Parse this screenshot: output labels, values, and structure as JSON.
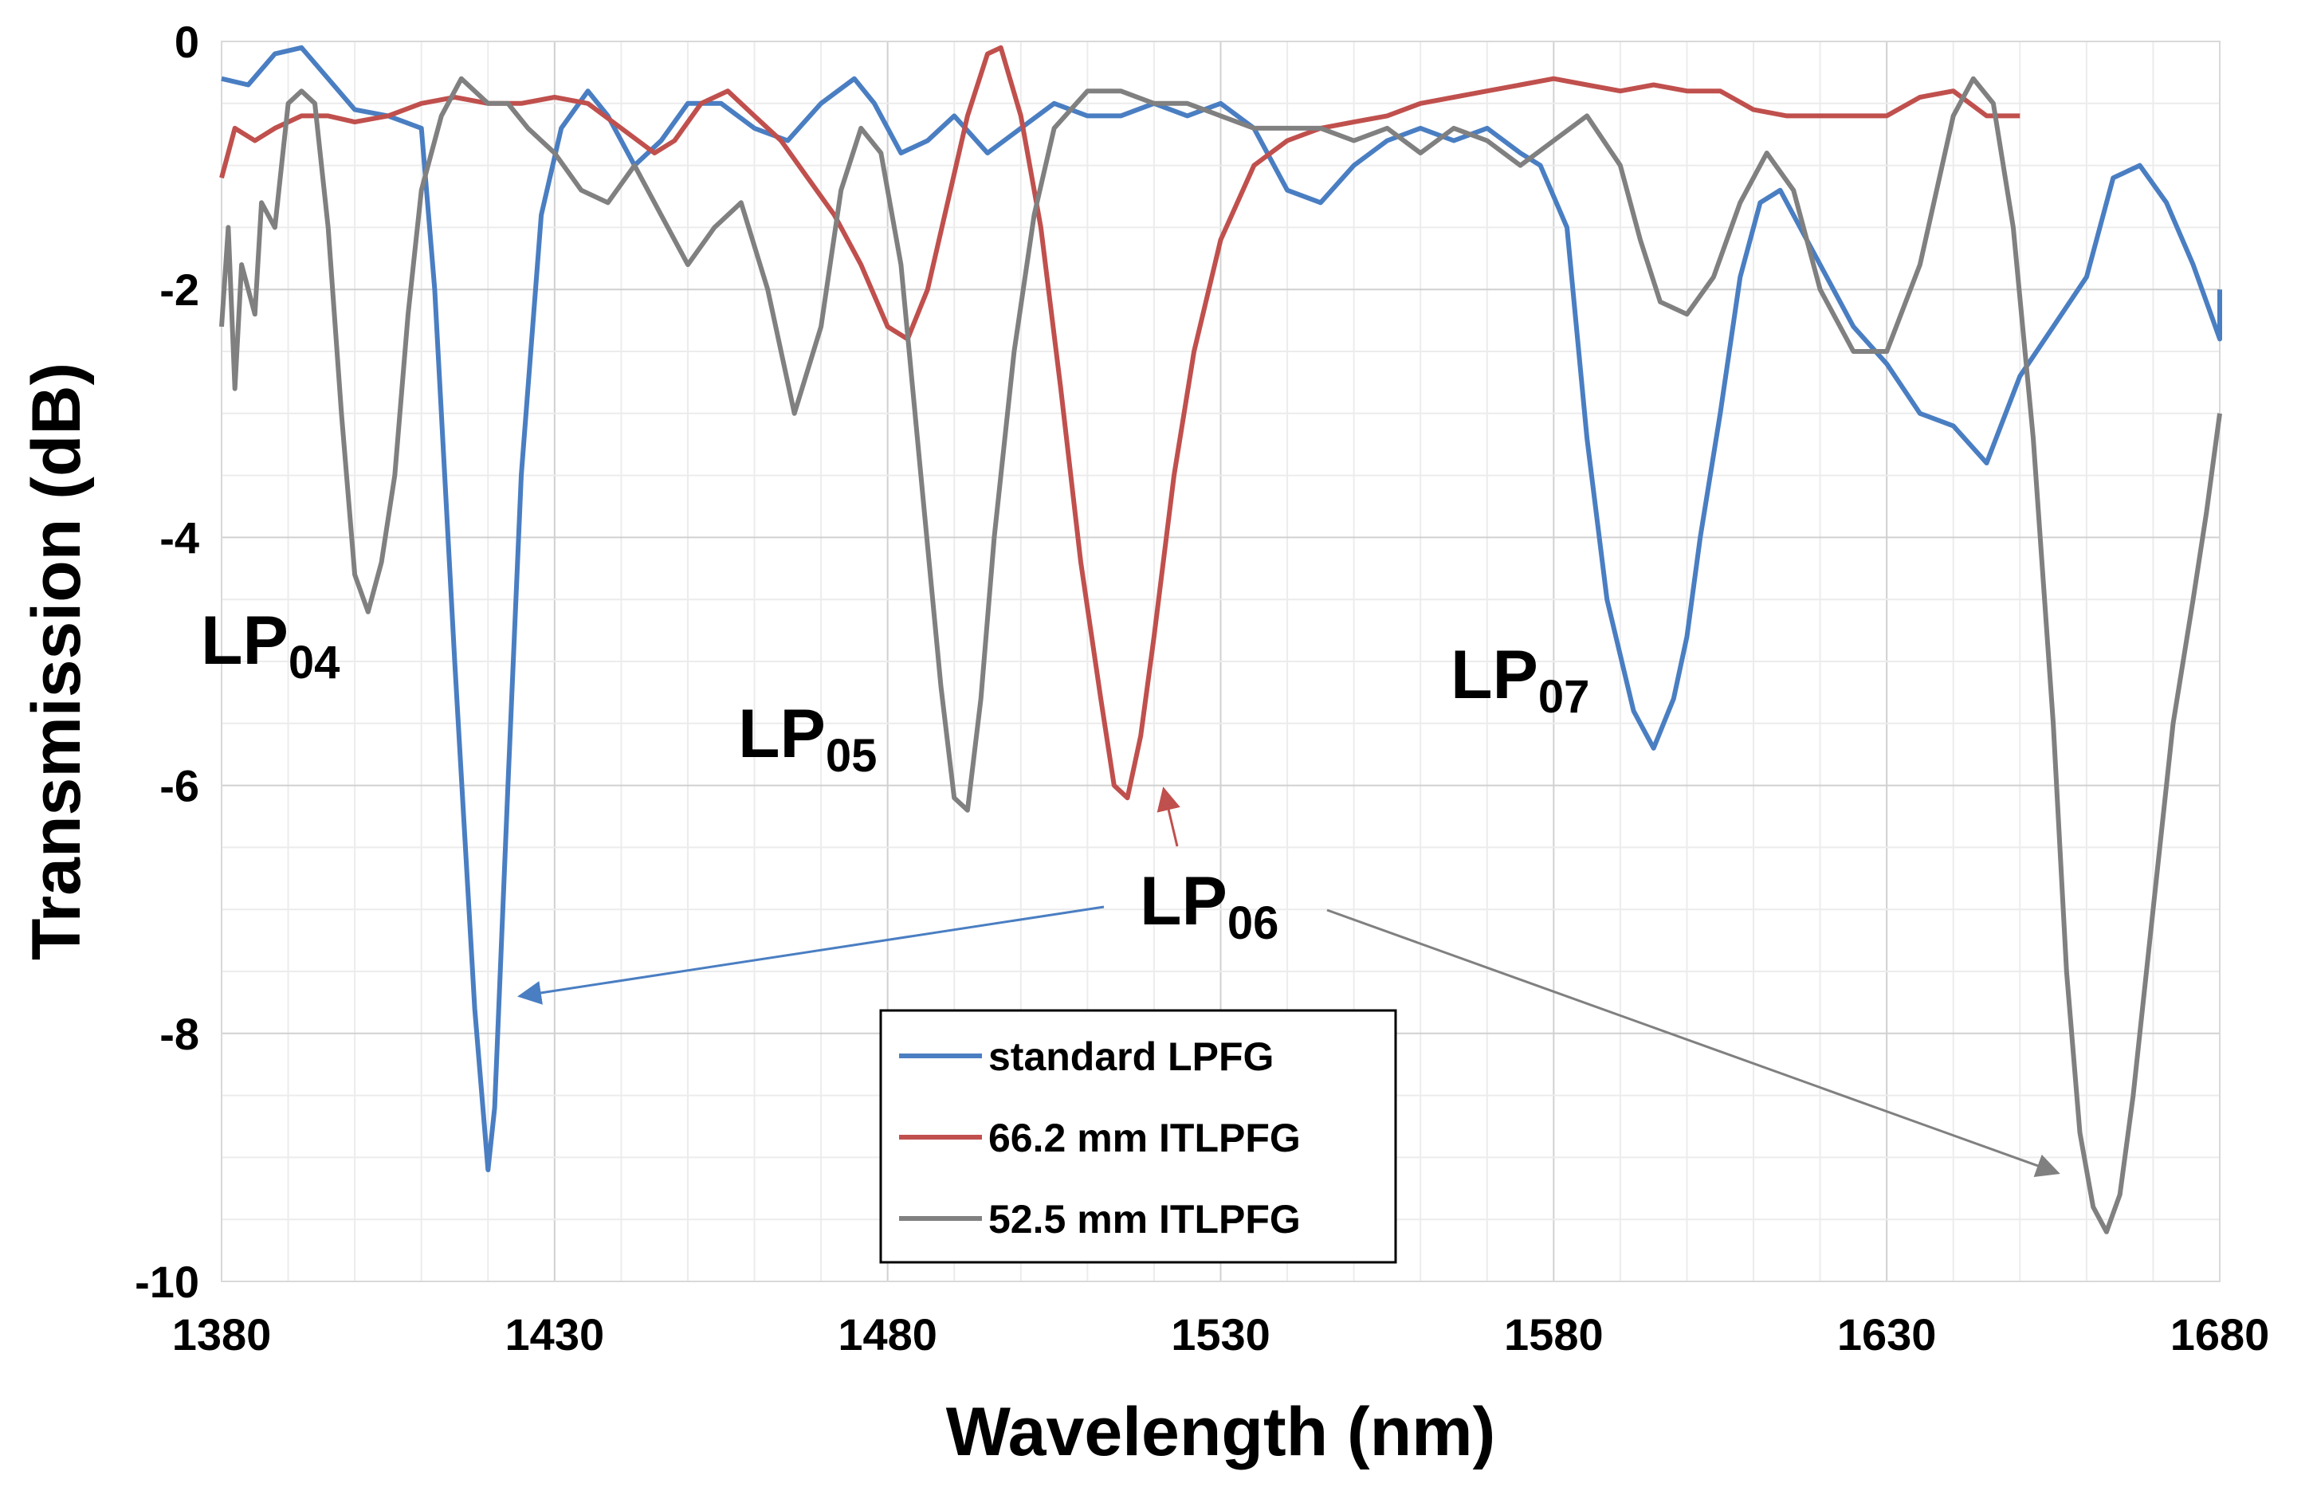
{
  "chart_data": {
    "type": "line",
    "xlabel": "Wavelength (nm)",
    "ylabel": "Transmission (dB)",
    "xlim": [
      1380,
      1680
    ],
    "ylim": [
      -10,
      0
    ],
    "x_ticks": [
      1380,
      1430,
      1480,
      1530,
      1580,
      1630,
      1680
    ],
    "y_ticks": [
      0,
      -2,
      -4,
      -6,
      -8,
      -10
    ],
    "x_ticks_labels": [
      "1380",
      "1430",
      "1480",
      "1530",
      "1580",
      "1630",
      "1680"
    ],
    "y_ticks_labels": [
      "0",
      "-2",
      "-4",
      "-6",
      "-8",
      "-10"
    ],
    "grid": true,
    "legend_position": "bottom-center",
    "series": [
      {
        "name": "standard LPFG",
        "color": "#4a7ec2",
        "points": [
          [
            1380,
            -0.3
          ],
          [
            1384,
            -0.35
          ],
          [
            1388,
            -0.1
          ],
          [
            1392,
            -0.05
          ],
          [
            1396,
            -0.3
          ],
          [
            1400,
            -0.55
          ],
          [
            1405,
            -0.6
          ],
          [
            1410,
            -0.7
          ],
          [
            1412,
            -2.0
          ],
          [
            1415,
            -5.0
          ],
          [
            1418,
            -7.8
          ],
          [
            1420,
            -9.1
          ],
          [
            1421,
            -8.6
          ],
          [
            1423,
            -6.0
          ],
          [
            1425,
            -3.5
          ],
          [
            1428,
            -1.4
          ],
          [
            1431,
            -0.7
          ],
          [
            1435,
            -0.4
          ],
          [
            1438,
            -0.6
          ],
          [
            1442,
            -1.0
          ],
          [
            1446,
            -0.8
          ],
          [
            1450,
            -0.5
          ],
          [
            1455,
            -0.5
          ],
          [
            1460,
            -0.7
          ],
          [
            1465,
            -0.8
          ],
          [
            1470,
            -0.5
          ],
          [
            1475,
            -0.3
          ],
          [
            1478,
            -0.5
          ],
          [
            1482,
            -0.9
          ],
          [
            1486,
            -0.8
          ],
          [
            1490,
            -0.6
          ],
          [
            1495,
            -0.9
          ],
          [
            1500,
            -0.7
          ],
          [
            1505,
            -0.5
          ],
          [
            1510,
            -0.6
          ],
          [
            1515,
            -0.6
          ],
          [
            1520,
            -0.5
          ],
          [
            1525,
            -0.6
          ],
          [
            1530,
            -0.5
          ],
          [
            1535,
            -0.7
          ],
          [
            1540,
            -1.2
          ],
          [
            1545,
            -1.3
          ],
          [
            1550,
            -1.0
          ],
          [
            1555,
            -0.8
          ],
          [
            1560,
            -0.7
          ],
          [
            1565,
            -0.8
          ],
          [
            1570,
            -0.7
          ],
          [
            1575,
            -0.9
          ],
          [
            1578,
            -1.0
          ],
          [
            1582,
            -1.5
          ],
          [
            1585,
            -3.2
          ],
          [
            1588,
            -4.5
          ],
          [
            1592,
            -5.4
          ],
          [
            1595,
            -5.7
          ],
          [
            1598,
            -5.3
          ],
          [
            1600,
            -4.8
          ],
          [
            1602,
            -4.0
          ],
          [
            1605,
            -3.0
          ],
          [
            1608,
            -1.9
          ],
          [
            1611,
            -1.3
          ],
          [
            1614,
            -1.2
          ],
          [
            1618,
            -1.6
          ],
          [
            1622,
            -2.0
          ],
          [
            1625,
            -2.3
          ],
          [
            1630,
            -2.6
          ],
          [
            1635,
            -3.0
          ],
          [
            1640,
            -3.1
          ],
          [
            1645,
            -3.4
          ],
          [
            1650,
            -2.7
          ],
          [
            1655,
            -2.3
          ],
          [
            1660,
            -1.9
          ],
          [
            1664,
            -1.1
          ],
          [
            1668,
            -1.0
          ],
          [
            1672,
            -1.3
          ],
          [
            1676,
            -1.8
          ],
          [
            1680,
            -2.4
          ],
          [
            1680,
            -2.0
          ]
        ]
      },
      {
        "name": "66.2 mm ITLPFG",
        "color": "#c0504d",
        "points": [
          [
            1380,
            -1.1
          ],
          [
            1382,
            -0.7
          ],
          [
            1385,
            -0.8
          ],
          [
            1388,
            -0.7
          ],
          [
            1392,
            -0.6
          ],
          [
            1396,
            -0.6
          ],
          [
            1400,
            -0.65
          ],
          [
            1405,
            -0.6
          ],
          [
            1410,
            -0.5
          ],
          [
            1415,
            -0.45
          ],
          [
            1420,
            -0.5
          ],
          [
            1425,
            -0.5
          ],
          [
            1430,
            -0.45
          ],
          [
            1435,
            -0.5
          ],
          [
            1440,
            -0.7
          ],
          [
            1445,
            -0.9
          ],
          [
            1448,
            -0.8
          ],
          [
            1452,
            -0.5
          ],
          [
            1456,
            -0.4
          ],
          [
            1460,
            -0.6
          ],
          [
            1464,
            -0.8
          ],
          [
            1468,
            -1.1
          ],
          [
            1472,
            -1.4
          ],
          [
            1476,
            -1.8
          ],
          [
            1480,
            -2.3
          ],
          [
            1483,
            -2.4
          ],
          [
            1486,
            -2.0
          ],
          [
            1489,
            -1.3
          ],
          [
            1492,
            -0.6
          ],
          [
            1495,
            -0.1
          ],
          [
            1497,
            -0.05
          ],
          [
            1500,
            -0.6
          ],
          [
            1503,
            -1.5
          ],
          [
            1506,
            -2.8
          ],
          [
            1509,
            -4.2
          ],
          [
            1512,
            -5.3
          ],
          [
            1514,
            -6.0
          ],
          [
            1516,
            -6.1
          ],
          [
            1518,
            -5.6
          ],
          [
            1520,
            -4.8
          ],
          [
            1523,
            -3.5
          ],
          [
            1526,
            -2.5
          ],
          [
            1530,
            -1.6
          ],
          [
            1535,
            -1.0
          ],
          [
            1540,
            -0.8
          ],
          [
            1545,
            -0.7
          ],
          [
            1550,
            -0.65
          ],
          [
            1555,
            -0.6
          ],
          [
            1560,
            -0.5
          ],
          [
            1565,
            -0.45
          ],
          [
            1570,
            -0.4
          ],
          [
            1575,
            -0.35
          ],
          [
            1580,
            -0.3
          ],
          [
            1585,
            -0.35
          ],
          [
            1590,
            -0.4
          ],
          [
            1595,
            -0.35
          ],
          [
            1600,
            -0.4
          ],
          [
            1605,
            -0.4
          ],
          [
            1610,
            -0.55
          ],
          [
            1615,
            -0.6
          ],
          [
            1620,
            -0.6
          ],
          [
            1625,
            -0.6
          ],
          [
            1630,
            -0.6
          ],
          [
            1635,
            -0.45
          ],
          [
            1640,
            -0.4
          ],
          [
            1645,
            -0.6
          ],
          [
            1650,
            -0.6
          ]
        ]
      },
      {
        "name": "52.5 mm ITLPFG",
        "color": "#808080",
        "points": [
          [
            1380,
            -2.3
          ],
          [
            1381,
            -1.5
          ],
          [
            1382,
            -2.8
          ],
          [
            1383,
            -1.8
          ],
          [
            1385,
            -2.2
          ],
          [
            1386,
            -1.3
          ],
          [
            1388,
            -1.5
          ],
          [
            1390,
            -0.5
          ],
          [
            1392,
            -0.4
          ],
          [
            1394,
            -0.5
          ],
          [
            1396,
            -1.5
          ],
          [
            1398,
            -3.0
          ],
          [
            1400,
            -4.3
          ],
          [
            1402,
            -4.6
          ],
          [
            1404,
            -4.2
          ],
          [
            1406,
            -3.5
          ],
          [
            1408,
            -2.2
          ],
          [
            1410,
            -1.2
          ],
          [
            1413,
            -0.6
          ],
          [
            1416,
            -0.3
          ],
          [
            1420,
            -0.5
          ],
          [
            1423,
            -0.5
          ],
          [
            1426,
            -0.7
          ],
          [
            1430,
            -0.9
          ],
          [
            1434,
            -1.2
          ],
          [
            1438,
            -1.3
          ],
          [
            1442,
            -1.0
          ],
          [
            1446,
            -1.4
          ],
          [
            1450,
            -1.8
          ],
          [
            1454,
            -1.5
          ],
          [
            1458,
            -1.3
          ],
          [
            1462,
            -2.0
          ],
          [
            1466,
            -3.0
          ],
          [
            1470,
            -2.3
          ],
          [
            1473,
            -1.2
          ],
          [
            1476,
            -0.7
          ],
          [
            1479,
            -0.9
          ],
          [
            1482,
            -1.8
          ],
          [
            1485,
            -3.5
          ],
          [
            1488,
            -5.2
          ],
          [
            1490,
            -6.1
          ],
          [
            1492,
            -6.2
          ],
          [
            1494,
            -5.3
          ],
          [
            1496,
            -4.0
          ],
          [
            1499,
            -2.5
          ],
          [
            1502,
            -1.4
          ],
          [
            1505,
            -0.7
          ],
          [
            1510,
            -0.4
          ],
          [
            1515,
            -0.4
          ],
          [
            1520,
            -0.5
          ],
          [
            1525,
            -0.5
          ],
          [
            1530,
            -0.6
          ],
          [
            1535,
            -0.7
          ],
          [
            1540,
            -0.7
          ],
          [
            1545,
            -0.7
          ],
          [
            1550,
            -0.8
          ],
          [
            1555,
            -0.7
          ],
          [
            1560,
            -0.9
          ],
          [
            1565,
            -0.7
          ],
          [
            1570,
            -0.8
          ],
          [
            1575,
            -1.0
          ],
          [
            1580,
            -0.8
          ],
          [
            1585,
            -0.6
          ],
          [
            1590,
            -1.0
          ],
          [
            1593,
            -1.6
          ],
          [
            1596,
            -2.1
          ],
          [
            1600,
            -2.2
          ],
          [
            1604,
            -1.9
          ],
          [
            1608,
            -1.3
          ],
          [
            1612,
            -0.9
          ],
          [
            1616,
            -1.2
          ],
          [
            1620,
            -2.0
          ],
          [
            1625,
            -2.5
          ],
          [
            1630,
            -2.5
          ],
          [
            1635,
            -1.8
          ],
          [
            1640,
            -0.6
          ],
          [
            1643,
            -0.3
          ],
          [
            1646,
            -0.5
          ],
          [
            1649,
            -1.5
          ],
          [
            1652,
            -3.2
          ],
          [
            1655,
            -5.5
          ],
          [
            1657,
            -7.5
          ],
          [
            1659,
            -8.8
          ],
          [
            1661,
            -9.4
          ],
          [
            1663,
            -9.6
          ],
          [
            1665,
            -9.3
          ],
          [
            1667,
            -8.5
          ],
          [
            1670,
            -7.0
          ],
          [
            1673,
            -5.5
          ],
          [
            1676,
            -4.5
          ],
          [
            1678,
            -3.8
          ],
          [
            1680,
            -3.0
          ]
        ]
      }
    ],
    "annotations": [
      {
        "main": "LP",
        "sub": "04"
      },
      {
        "main": "LP",
        "sub": "05"
      },
      {
        "main": "LP",
        "sub": "06"
      },
      {
        "main": "LP",
        "sub": "07"
      }
    ]
  }
}
